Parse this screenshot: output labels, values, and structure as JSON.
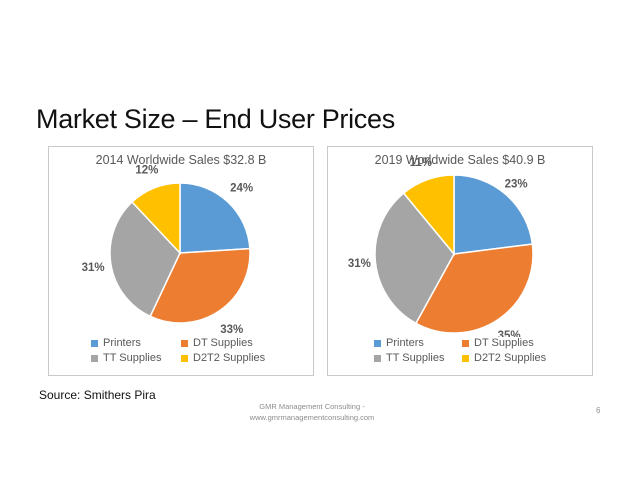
{
  "slide": {
    "title": "Market Size – End User Prices",
    "source": "Source: Smithers Pira",
    "footer_line1": "GMR Management Consulting -",
    "footer_line2": "www.gmrmanagementconsulting.com",
    "page_number": "6"
  },
  "chart_data": [
    {
      "type": "pie",
      "title": "2014 Worldwide Sales $32.8 B",
      "categories": [
        "Printers",
        "DT Supplies",
        "TT Supplies",
        "D2T2 Supplies"
      ],
      "values": [
        24,
        33,
        31,
        12
      ],
      "labels": [
        "24%",
        "33%",
        "31%",
        "12%"
      ],
      "colors": [
        "#5b9bd5",
        "#ed7d31",
        "#a5a5a5",
        "#ffc000"
      ],
      "legend_position": "bottom"
    },
    {
      "type": "pie",
      "title": "2019 Worldwide Sales $40.9 B",
      "categories": [
        "Printers",
        "DT Supplies",
        "TT Supplies",
        "D2T2 Supplies"
      ],
      "values": [
        23,
        35,
        31,
        11
      ],
      "labels": [
        "23%",
        "35%",
        "31%",
        "11%"
      ],
      "colors": [
        "#5b9bd5",
        "#ed7d31",
        "#a5a5a5",
        "#ffc000"
      ],
      "legend_position": "bottom"
    }
  ]
}
